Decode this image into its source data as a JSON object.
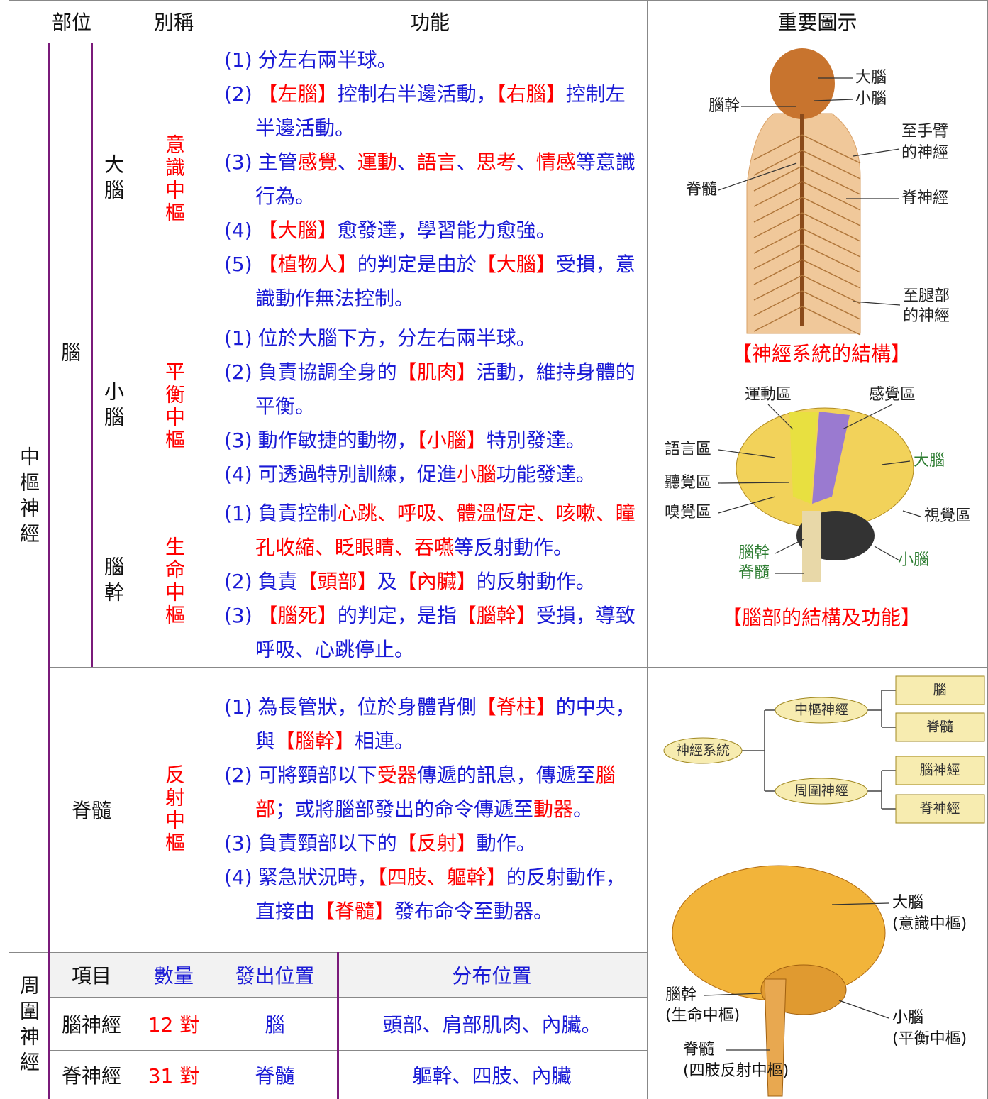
{
  "header": {
    "columns": [
      "部位",
      "別稱",
      "功能",
      "重要圖示"
    ]
  },
  "central": {
    "label": "中樞神經",
    "brain_label": "腦",
    "rows": [
      {
        "part": "大腦",
        "alias": "意識中樞",
        "items": [
          {
            "num": "(1)",
            "runs": [
              {
                "text": "分左右兩半球。",
                "color": "blue"
              }
            ]
          },
          {
            "num": "(2)",
            "runs": [
              {
                "text": "【左腦】",
                "color": "red"
              },
              {
                "text": "控制右半邊活動，",
                "color": "blue"
              },
              {
                "text": "【右腦】",
                "color": "red"
              },
              {
                "text": "控制左半邊活動。",
                "color": "blue"
              }
            ]
          },
          {
            "num": "(3)",
            "runs": [
              {
                "text": "主管",
                "color": "blue"
              },
              {
                "text": "感覺",
                "color": "red"
              },
              {
                "text": "、",
                "color": "blue"
              },
              {
                "text": "運動",
                "color": "red"
              },
              {
                "text": "、",
                "color": "blue"
              },
              {
                "text": "語言",
                "color": "red"
              },
              {
                "text": "、",
                "color": "blue"
              },
              {
                "text": "思考",
                "color": "red"
              },
              {
                "text": "、",
                "color": "blue"
              },
              {
                "text": "情感",
                "color": "red"
              },
              {
                "text": "等意識行為。",
                "color": "blue"
              }
            ]
          },
          {
            "num": "(4)",
            "runs": [
              {
                "text": "【大腦】",
                "color": "red"
              },
              {
                "text": "愈發達，學習能力愈強。",
                "color": "blue"
              }
            ]
          },
          {
            "num": "(5)",
            "runs": [
              {
                "text": "【植物人】",
                "color": "red"
              },
              {
                "text": "的判定是由於",
                "color": "blue"
              },
              {
                "text": "【大腦】",
                "color": "red"
              },
              {
                "text": "受損，意識動作無法控制。",
                "color": "blue"
              }
            ]
          }
        ]
      },
      {
        "part": "小腦",
        "alias": "平衡中樞",
        "items": [
          {
            "num": "(1)",
            "runs": [
              {
                "text": "位於大腦下方，分左右兩半球。",
                "color": "blue"
              }
            ]
          },
          {
            "num": "(2)",
            "runs": [
              {
                "text": "負責協調全身的",
                "color": "blue"
              },
              {
                "text": "【肌肉】",
                "color": "red"
              },
              {
                "text": "活動，維持身體的平衡。",
                "color": "blue"
              }
            ]
          },
          {
            "num": "(3)",
            "runs": [
              {
                "text": "動作敏捷的動物，",
                "color": "blue"
              },
              {
                "text": "【小腦】",
                "color": "red"
              },
              {
                "text": "特別發達。",
                "color": "blue"
              }
            ]
          },
          {
            "num": "(4)",
            "runs": [
              {
                "text": "可透過特別訓練，促進",
                "color": "blue"
              },
              {
                "text": "小腦",
                "color": "red"
              },
              {
                "text": "功能發達。",
                "color": "blue"
              }
            ]
          }
        ]
      },
      {
        "part": "腦幹",
        "alias": "生命中樞",
        "items": [
          {
            "num": "(1)",
            "runs": [
              {
                "text": "負責控制",
                "color": "blue"
              },
              {
                "text": "心跳、呼吸、體溫恆定、咳嗽、瞳孔收縮、眨眼睛、吞嚥",
                "color": "red"
              },
              {
                "text": "等反射動作。",
                "color": "blue"
              }
            ]
          },
          {
            "num": "(2)",
            "runs": [
              {
                "text": "負責",
                "color": "blue"
              },
              {
                "text": "【頭部】",
                "color": "red"
              },
              {
                "text": "及",
                "color": "blue"
              },
              {
                "text": "【內臟】",
                "color": "red"
              },
              {
                "text": "的反射動作。",
                "color": "blue"
              }
            ]
          },
          {
            "num": "(3)",
            "runs": [
              {
                "text": "【腦死】",
                "color": "red"
              },
              {
                "text": "的判定，是指",
                "color": "blue"
              },
              {
                "text": "【腦幹】",
                "color": "red"
              },
              {
                "text": "受損，導致呼吸、心跳停止。",
                "color": "blue"
              }
            ]
          }
        ]
      },
      {
        "part": "脊髓",
        "alias": "反射中樞",
        "items": [
          {
            "num": "(1)",
            "runs": [
              {
                "text": "為長管狀，位於身體背側",
                "color": "blue"
              },
              {
                "text": "【脊柱】",
                "color": "red"
              },
              {
                "text": "的中央，與",
                "color": "blue"
              },
              {
                "text": "【腦幹】",
                "color": "red"
              },
              {
                "text": "相連。",
                "color": "blue"
              }
            ]
          },
          {
            "num": "(2)",
            "runs": [
              {
                "text": "可將頸部以下",
                "color": "blue"
              },
              {
                "text": "受器",
                "color": "red"
              },
              {
                "text": "傳遞的訊息，傳遞至",
                "color": "blue"
              },
              {
                "text": "腦部",
                "color": "red"
              },
              {
                "text": "；或將腦部發出的命令傳遞至",
                "color": "blue"
              },
              {
                "text": "動器",
                "color": "red"
              },
              {
                "text": "。",
                "color": "blue"
              }
            ]
          },
          {
            "num": "(3)",
            "runs": [
              {
                "text": "負責頸部以下的",
                "color": "blue"
              },
              {
                "text": "【反射】",
                "color": "red"
              },
              {
                "text": "動作。",
                "color": "blue"
              }
            ]
          },
          {
            "num": "(4)",
            "runs": [
              {
                "text": "緊急狀況時，",
                "color": "blue"
              },
              {
                "text": "【四肢、軀幹】",
                "color": "red"
              },
              {
                "text": "的反射動作，直接由",
                "color": "blue"
              },
              {
                "text": "【脊髓】",
                "color": "red"
              },
              {
                "text": "發布命令至動器。",
                "color": "blue"
              }
            ]
          }
        ]
      }
    ]
  },
  "peripheral": {
    "label": "周圍神經",
    "columns": [
      "項目",
      "數量",
      "發出位置",
      "分布位置"
    ],
    "rows": [
      [
        "腦神經",
        "12 對",
        "腦",
        "頭部、肩部肌肉、內臟。"
      ],
      [
        "脊神經",
        "31 對",
        "脊髓",
        "軀幹、四肢、內臟"
      ]
    ]
  },
  "figures": {
    "nervous_system": {
      "labels": [
        "大腦",
        "小腦",
        "腦幹",
        "至手臂",
        "的神經",
        "脊髓",
        "脊神經",
        "至腿部",
        "的神經"
      ],
      "caption": "【神經系統的結構】"
    },
    "brain_areas": {
      "labels": [
        "運動區",
        "感覺區",
        "語言區",
        "聽覺區",
        "嗅覺區",
        "大腦",
        "視覺區",
        "腦幹",
        "脊髓",
        "小腦"
      ],
      "caption": "【腦部的結構及功能】"
    },
    "classification": {
      "labels": [
        "神經系統",
        "中樞神經",
        "周圍神經",
        "腦",
        "脊髓",
        "腦神經",
        "脊神經"
      ]
    },
    "brain_centers": {
      "labels": [
        "大腦",
        "(意識中樞)",
        "腦幹",
        "(生命中樞)",
        "脊髓",
        "(四肢反射中樞)",
        "小腦",
        "(平衡中樞)"
      ]
    }
  }
}
